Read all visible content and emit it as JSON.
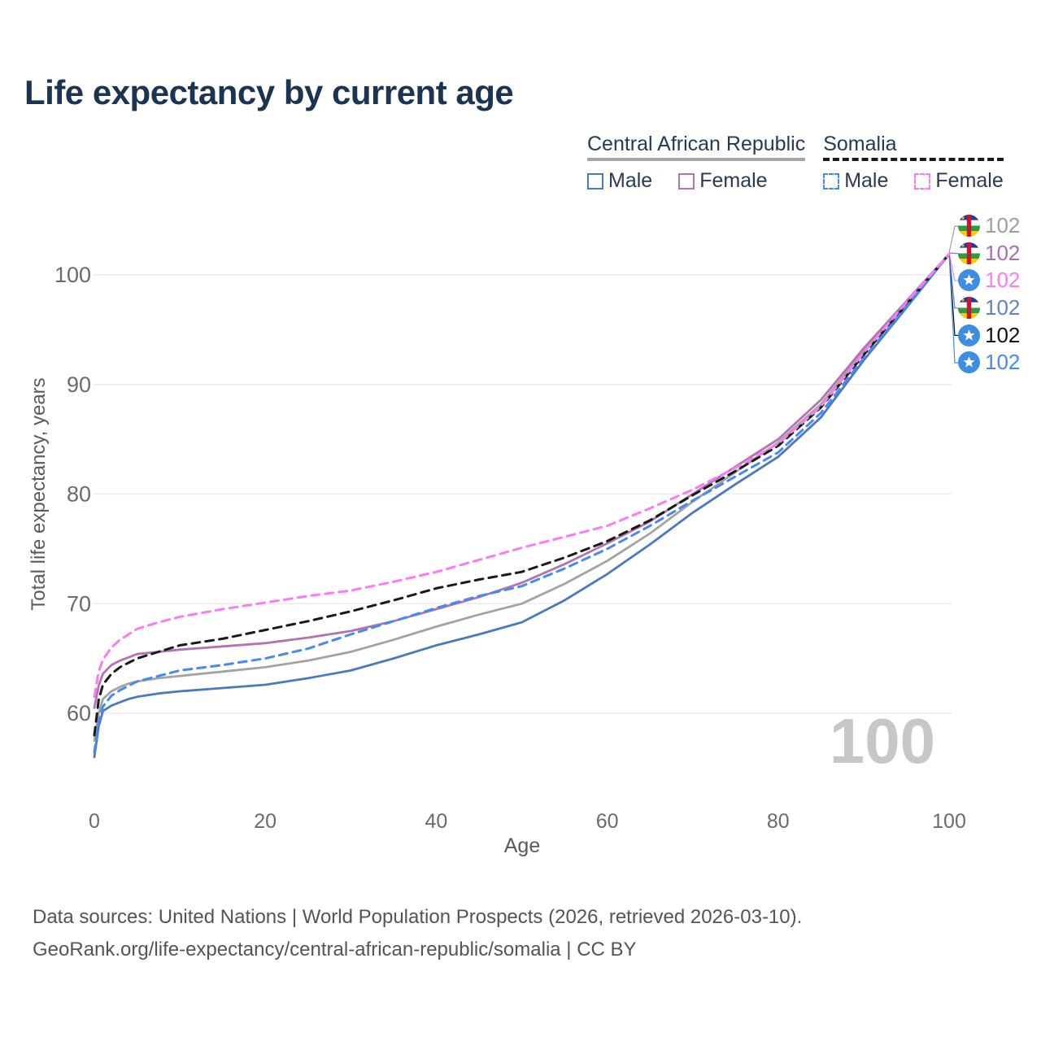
{
  "title": "Life expectancy by current age",
  "legend": {
    "groups": [
      {
        "label": "Central African Republic",
        "line_color": "#a6a6a6",
        "line_style": "solid",
        "items": [
          {
            "label": "Male",
            "color": "#4a79bd",
            "style": "solid"
          },
          {
            "label": "Female",
            "color": "#b273b2",
            "style": "solid"
          }
        ]
      },
      {
        "label": "Somalia",
        "line_color": "#1a1a1a",
        "line_style": "dashed",
        "items": [
          {
            "label": "Male",
            "color": "#4689ef",
            "style": "dashed"
          },
          {
            "label": "Female",
            "color": "#fb7cf0",
            "style": "dashed"
          }
        ]
      }
    ]
  },
  "watermark": "100",
  "end_labels": [
    {
      "value": "102",
      "flag": "central-african-republic",
      "color": "#9e9e9e"
    },
    {
      "value": "102",
      "flag": "central-african-republic",
      "color": "#a770ae"
    },
    {
      "value": "102",
      "flag": "somalia",
      "color": "#fb7cf0"
    },
    {
      "value": "102",
      "flag": "central-african-republic",
      "color": "#5b86c4"
    },
    {
      "value": "102",
      "flag": "somalia",
      "color": "#111111"
    },
    {
      "value": "102",
      "flag": "somalia",
      "color": "#4689ef"
    }
  ],
  "footer": {
    "line1": "Data sources: United Nations | World Population Prospects (2026, retrieved 2026-03-10).",
    "line2": "GeoRank.org/life-expectancy/central-african-republic/somalia | CC BY"
  },
  "chart_data": {
    "type": "line",
    "title": "Life expectancy by current age",
    "xlabel": "Age",
    "ylabel": "Total life expectancy, years",
    "x_ticks": [
      0,
      20,
      40,
      60,
      80,
      100
    ],
    "y_ticks": [
      60,
      70,
      80,
      90,
      100
    ],
    "xlim": [
      0,
      100
    ],
    "ylim": [
      55,
      104
    ],
    "grid": "horizontal",
    "legend_position": "top-right",
    "x": [
      0,
      0.5,
      1,
      2,
      3,
      4,
      5,
      7.5,
      10,
      15,
      20,
      25,
      30,
      35,
      40,
      45,
      50,
      55,
      60,
      65,
      70,
      75,
      80,
      85,
      90,
      95,
      100
    ],
    "series": [
      {
        "name": "Central African Republic — Total",
        "color": "#a3a3a3",
        "dash": false,
        "values": [
          57.5,
          60.0,
          61.3,
          62.0,
          62.4,
          62.7,
          62.9,
          63.2,
          63.4,
          63.8,
          64.2,
          64.8,
          65.6,
          66.7,
          67.9,
          69.0,
          70.0,
          71.8,
          73.9,
          76.4,
          79.3,
          82.0,
          84.7,
          88.2,
          93.0,
          97.4,
          101.9
        ]
      },
      {
        "name": "Central African Republic — Female",
        "color": "#b273b2",
        "dash": false,
        "values": [
          60.5,
          62.5,
          63.6,
          64.4,
          64.8,
          65.1,
          65.4,
          65.6,
          65.8,
          66.1,
          66.4,
          66.9,
          67.5,
          68.4,
          69.5,
          70.6,
          71.9,
          73.6,
          75.5,
          77.5,
          80.0,
          82.5,
          85.0,
          88.6,
          93.3,
          97.6,
          101.9
        ]
      },
      {
        "name": "Central African Republic — Male",
        "color": "#4a79bd",
        "dash": false,
        "values": [
          56.0,
          58.8,
          60.2,
          60.7,
          61.0,
          61.3,
          61.5,
          61.8,
          62.0,
          62.3,
          62.6,
          63.2,
          63.9,
          65.0,
          66.2,
          67.2,
          68.3,
          70.3,
          72.7,
          75.4,
          78.3,
          80.9,
          83.4,
          87.0,
          92.2,
          97.0,
          101.9
        ]
      },
      {
        "name": "Somalia — Total",
        "color": "#1a1a1a",
        "dash": true,
        "values": [
          58.0,
          61.2,
          62.6,
          63.6,
          64.2,
          64.6,
          65.0,
          65.6,
          66.2,
          66.8,
          67.6,
          68.4,
          69.3,
          70.3,
          71.4,
          72.2,
          72.9,
          74.2,
          75.7,
          77.6,
          79.9,
          82.1,
          84.4,
          87.9,
          92.7,
          97.3,
          101.9
        ]
      },
      {
        "name": "Somalia — Male",
        "color": "#4689ef",
        "dash": true,
        "values": [
          56.4,
          59.2,
          60.6,
          61.6,
          62.1,
          62.5,
          62.9,
          63.4,
          63.9,
          64.4,
          65.0,
          65.9,
          67.2,
          68.4,
          69.6,
          70.7,
          71.6,
          73.2,
          75.0,
          77.1,
          79.4,
          81.6,
          83.8,
          87.4,
          92.4,
          97.1,
          101.9
        ]
      },
      {
        "name": "Somalia — Female",
        "color": "#fb7cf0",
        "dash": true,
        "values": [
          61.5,
          63.8,
          64.9,
          66.0,
          66.7,
          67.2,
          67.7,
          68.3,
          68.8,
          69.5,
          70.1,
          70.7,
          71.2,
          72.0,
          72.9,
          74.0,
          75.1,
          76.1,
          77.1,
          78.7,
          80.4,
          82.4,
          84.6,
          88.0,
          92.9,
          97.5,
          101.9
        ]
      }
    ]
  }
}
